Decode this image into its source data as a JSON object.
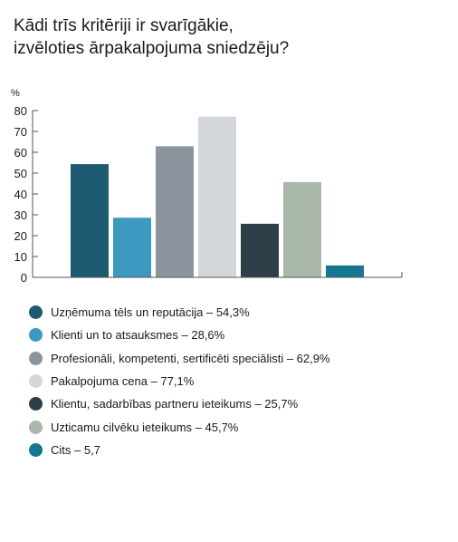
{
  "title": {
    "line1": "Kādi trīs kritēriji ir svarīgākie,",
    "line2": "izvēloties ārpakalpojuma sniedzēju?"
  },
  "chart_data": {
    "type": "bar",
    "unit_label": "%",
    "ylim": [
      0,
      80
    ],
    "yticks": [
      0,
      10,
      20,
      30,
      40,
      50,
      60,
      70,
      80
    ],
    "grid": false,
    "legend_position": "bottom",
    "categories": [
      "Uzņēmuma tēls un reputācija – 54,3%",
      "Klienti un to atsauksmes – 28,6%",
      "Profesionāli, kompetenti, sertificēti speciālisti – 62,9%",
      "Pakalpojuma cena – 77,1%",
      "Klientu, sadarbības partneru ieteikums – 25,7%",
      "Uzticamu cilvēku ieteikums – 45,7%",
      "Cits – 5,7"
    ],
    "values": [
      54.3,
      28.6,
      62.9,
      77.1,
      25.7,
      45.7,
      5.7
    ],
    "colors": [
      "#1d5a70",
      "#3d99bf",
      "#8c959e",
      "#d3d7dc",
      "#2e3f4a",
      "#a9b8ab",
      "#14768f"
    ]
  }
}
